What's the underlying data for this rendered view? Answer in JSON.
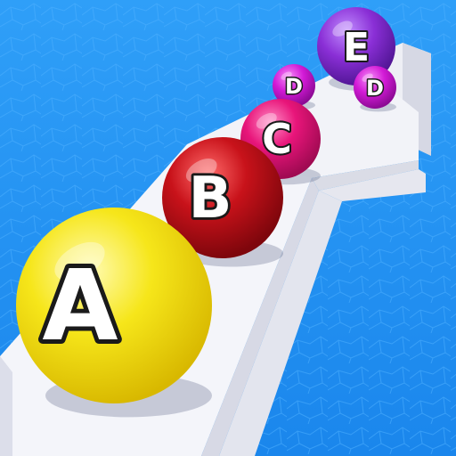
{
  "game": {
    "balls": [
      {
        "id": "a",
        "letter": "A",
        "color": "#f6e61a"
      },
      {
        "id": "b",
        "letter": "B",
        "color": "#c8121a"
      },
      {
        "id": "c",
        "letter": "C",
        "color": "#e8157a"
      },
      {
        "id": "d1",
        "letter": "D",
        "color": "#d21ad6"
      },
      {
        "id": "d2",
        "letter": "D",
        "color": "#d21ad6"
      },
      {
        "id": "e",
        "letter": "E",
        "color": "#8a2fd6"
      }
    ],
    "colors": {
      "water": "#1e8ff0",
      "water_dark": "#1673d8",
      "track_top": "#f2f3f8",
      "track_side": "#d4d6e2"
    }
  }
}
